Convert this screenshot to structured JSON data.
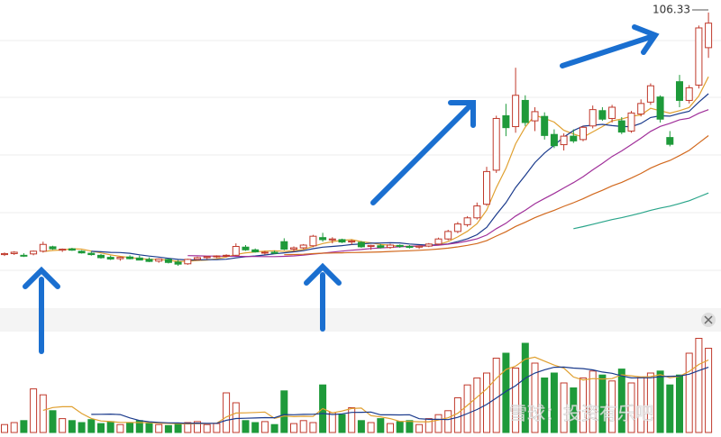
{
  "chart_data": {
    "type": "candlestick",
    "up_color": "#c0392b",
    "down_color": "#1e9a3a",
    "ylim": [
      20,
      110
    ],
    "vlim": [
      0,
      100
    ],
    "candles": [
      [
        35.2,
        35.8,
        34.8,
        35.5
      ],
      [
        35.5,
        36.2,
        35.1,
        35.9
      ],
      [
        35.0,
        35.6,
        34.5,
        34.8
      ],
      [
        35.4,
        36.4,
        35.0,
        36.2
      ],
      [
        36.2,
        39.0,
        35.8,
        38.2
      ],
      [
        37.5,
        37.8,
        36.6,
        36.9
      ],
      [
        36.5,
        37.0,
        36.0,
        36.8
      ],
      [
        36.9,
        37.2,
        36.3,
        36.5
      ],
      [
        36.2,
        36.5,
        35.5,
        35.7
      ],
      [
        35.6,
        36.0,
        34.9,
        35.2
      ],
      [
        35.0,
        35.4,
        34.0,
        34.3
      ],
      [
        34.4,
        34.9,
        33.6,
        33.9
      ],
      [
        34.0,
        34.6,
        33.4,
        34.4
      ],
      [
        34.5,
        35.0,
        33.8,
        34.0
      ],
      [
        34.2,
        34.9,
        33.5,
        33.6
      ],
      [
        33.8,
        34.4,
        33.0,
        33.2
      ],
      [
        33.3,
        34.1,
        32.8,
        33.9
      ],
      [
        33.8,
        34.0,
        32.6,
        32.9
      ],
      [
        33.0,
        33.6,
        31.9,
        32.4
      ],
      [
        32.5,
        34.0,
        32.2,
        33.8
      ],
      [
        33.8,
        34.6,
        33.5,
        34.3
      ],
      [
        34.3,
        34.8,
        33.9,
        34.6
      ],
      [
        34.6,
        35.0,
        34.2,
        34.8
      ],
      [
        34.8,
        35.3,
        34.4,
        35.0
      ],
      [
        35.0,
        38.5,
        34.8,
        37.6
      ],
      [
        37.4,
        38.0,
        36.3,
        36.6
      ],
      [
        36.6,
        37.0,
        35.8,
        36.0
      ],
      [
        35.8,
        36.3,
        35.2,
        35.9
      ],
      [
        35.9,
        36.4,
        35.4,
        35.6
      ],
      [
        39.0,
        40.0,
        36.5,
        36.8
      ],
      [
        36.8,
        37.6,
        36.0,
        37.2
      ],
      [
        37.2,
        38.3,
        36.8,
        38.0
      ],
      [
        37.8,
        41.0,
        37.4,
        40.6
      ],
      [
        40.2,
        41.6,
        39.0,
        39.6
      ],
      [
        39.5,
        40.3,
        38.5,
        39.8
      ],
      [
        39.6,
        39.9,
        38.6,
        38.9
      ],
      [
        38.9,
        39.6,
        38.1,
        39.2
      ],
      [
        38.8,
        39.2,
        37.2,
        37.5
      ],
      [
        37.6,
        38.1,
        36.6,
        37.9
      ],
      [
        37.8,
        38.3,
        37.0,
        37.3
      ],
      [
        37.3,
        38.4,
        36.9,
        38.0
      ],
      [
        37.9,
        38.2,
        37.2,
        37.6
      ],
      [
        37.6,
        38.0,
        37.0,
        37.4
      ],
      [
        37.4,
        37.9,
        36.9,
        37.7
      ],
      [
        37.7,
        38.6,
        37.4,
        38.3
      ],
      [
        38.3,
        40.2,
        38.0,
        39.8
      ],
      [
        39.8,
        42.5,
        39.4,
        42.0
      ],
      [
        42.0,
        44.8,
        41.5,
        44.2
      ],
      [
        44.0,
        46.5,
        43.4,
        46.0
      ],
      [
        46.0,
        50.5,
        45.5,
        49.5
      ],
      [
        50.0,
        61.0,
        49.5,
        59.6
      ],
      [
        60.0,
        76.0,
        59.2,
        75.2
      ],
      [
        76.0,
        79.5,
        70.0,
        72.5
      ],
      [
        72.8,
        90.1,
        71.0,
        82.0
      ],
      [
        80.5,
        82.0,
        73.0,
        74.0
      ],
      [
        74.5,
        78.5,
        71.5,
        77.2
      ],
      [
        75.8,
        77.0,
        69.0,
        70.2
      ],
      [
        70.5,
        72.0,
        66.5,
        67.2
      ],
      [
        67.5,
        70.8,
        65.8,
        70.0
      ],
      [
        70.0,
        72.0,
        68.0,
        68.6
      ],
      [
        69.0,
        73.0,
        68.5,
        72.6
      ],
      [
        73.0,
        79.0,
        72.3,
        77.8
      ],
      [
        77.5,
        78.5,
        74.5,
        75.0
      ],
      [
        75.2,
        79.2,
        74.0,
        78.5
      ],
      [
        74.5,
        75.6,
        70.6,
        71.2
      ],
      [
        71.5,
        77.4,
        71.0,
        76.8
      ],
      [
        76.5,
        80.8,
        75.8,
        79.6
      ],
      [
        80.0,
        85.5,
        79.2,
        84.8
      ],
      [
        81.5,
        82.0,
        74.0,
        75.0
      ],
      [
        69.6,
        71.5,
        67.0,
        67.6
      ],
      [
        86.0,
        88.0,
        78.5,
        80.5
      ],
      [
        80.5,
        85.0,
        79.6,
        84.2
      ],
      [
        85.0,
        102.5,
        84.0,
        101.8
      ],
      [
        96.0,
        106.33,
        93.0,
        103.2
      ]
    ],
    "volumes": [
      8,
      10,
      12,
      44,
      38,
      22,
      14,
      12,
      10,
      13,
      9,
      11,
      8,
      10,
      12,
      9,
      8,
      7,
      9,
      10,
      11,
      8,
      9,
      40,
      30,
      12,
      10,
      11,
      8,
      42,
      9,
      12,
      10,
      48,
      20,
      18,
      25,
      12,
      10,
      14,
      9,
      11,
      12,
      8,
      14,
      18,
      22,
      35,
      48,
      55,
      60,
      75,
      80,
      65,
      90,
      70,
      55,
      60,
      50,
      45,
      55,
      62,
      58,
      52,
      64,
      50,
      56,
      60,
      62,
      48,
      58,
      80,
      95,
      85
    ],
    "ma_lines": [
      {
        "period": 5,
        "color": "#e0a030"
      },
      {
        "period": 10,
        "color": "#1a3a8c"
      },
      {
        "period": 20,
        "color": "#a0309a"
      },
      {
        "period": 30,
        "color": "#d2691e"
      },
      {
        "period": 60,
        "color": "#2aa58a"
      }
    ],
    "volume_ma_lines": [
      {
        "period": 5,
        "color": "#e0a030"
      },
      {
        "period": 10,
        "color": "#1a3a8c"
      }
    ],
    "watermark": "雪球：投资有乐吧"
  }
}
